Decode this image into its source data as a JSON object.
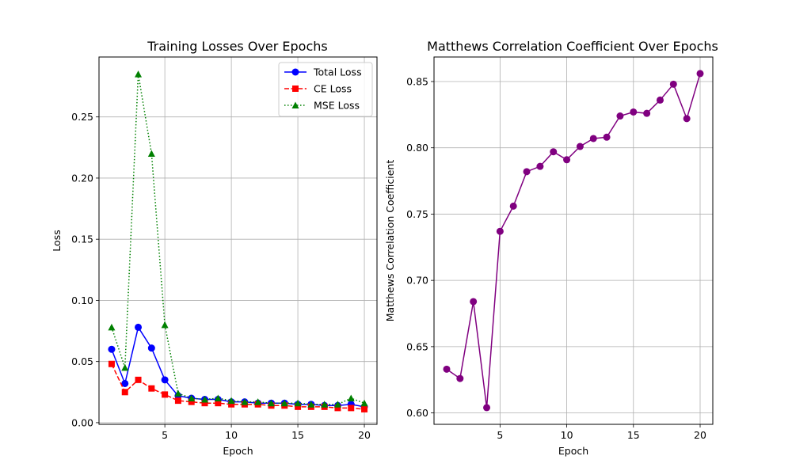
{
  "chart_data": [
    {
      "type": "line",
      "title": "Training Losses Over Epochs",
      "xlabel": "Epoch",
      "ylabel": "Loss",
      "xlim": [
        0.05,
        20.95
      ],
      "ylim": [
        -0.00135,
        0.299
      ],
      "xticks": [
        5,
        10,
        15,
        20
      ],
      "xtick_labels": [
        "5",
        "10",
        "15",
        "20"
      ],
      "yticks": [
        0.0,
        0.05,
        0.1,
        0.15,
        0.2,
        0.25
      ],
      "ytick_labels": [
        "0.00",
        "0.05",
        "0.10",
        "0.15",
        "0.20",
        "0.25"
      ],
      "grid": true,
      "legend": "top-right",
      "x": [
        1,
        2,
        3,
        4,
        5,
        6,
        7,
        8,
        9,
        10,
        11,
        12,
        13,
        14,
        15,
        16,
        17,
        18,
        19,
        20
      ],
      "series": [
        {
          "name": "Total Loss",
          "color": "#0000ff",
          "style": "solid",
          "marker": "circle",
          "values": [
            0.06,
            0.032,
            0.078,
            0.061,
            0.035,
            0.022,
            0.02,
            0.019,
            0.019,
            0.017,
            0.017,
            0.016,
            0.016,
            0.016,
            0.015,
            0.015,
            0.014,
            0.014,
            0.015,
            0.013
          ]
        },
        {
          "name": "CE Loss",
          "color": "#ff0000",
          "style": "dashed",
          "marker": "square",
          "values": [
            0.048,
            0.025,
            0.035,
            0.028,
            0.023,
            0.018,
            0.017,
            0.016,
            0.016,
            0.015,
            0.015,
            0.015,
            0.014,
            0.014,
            0.013,
            0.013,
            0.013,
            0.012,
            0.012,
            0.011
          ]
        },
        {
          "name": "MSE Loss",
          "color": "#008000",
          "style": "dotted",
          "marker": "triangle",
          "values": [
            0.078,
            0.045,
            0.285,
            0.22,
            0.08,
            0.024,
            0.02,
            0.019,
            0.02,
            0.018,
            0.017,
            0.017,
            0.016,
            0.016,
            0.016,
            0.015,
            0.015,
            0.015,
            0.02,
            0.016
          ]
        }
      ]
    },
    {
      "type": "line",
      "title": "Matthews Correlation Coefficient Over Epochs",
      "xlabel": "Epoch",
      "ylabel": "Matthews Correlation Coefficient",
      "xlim": [
        0.05,
        20.95
      ],
      "ylim": [
        0.5914,
        0.8685
      ],
      "xticks": [
        5,
        10,
        15,
        20
      ],
      "xtick_labels": [
        "5",
        "10",
        "15",
        "20"
      ],
      "yticks": [
        0.6,
        0.65,
        0.7,
        0.75,
        0.8,
        0.85
      ],
      "ytick_labels": [
        "0.60",
        "0.65",
        "0.70",
        "0.75",
        "0.80",
        "0.85"
      ],
      "grid": true,
      "x": [
        1,
        2,
        3,
        4,
        5,
        6,
        7,
        8,
        9,
        10,
        11,
        12,
        13,
        14,
        15,
        16,
        17,
        18,
        19,
        20
      ],
      "series": [
        {
          "color": "#800080",
          "style": "solid",
          "marker": "circle",
          "values": [
            0.633,
            0.626,
            0.684,
            0.604,
            0.737,
            0.756,
            0.782,
            0.786,
            0.797,
            0.791,
            0.801,
            0.807,
            0.808,
            0.824,
            0.827,
            0.826,
            0.836,
            0.848,
            0.822,
            0.856
          ]
        }
      ]
    }
  ]
}
